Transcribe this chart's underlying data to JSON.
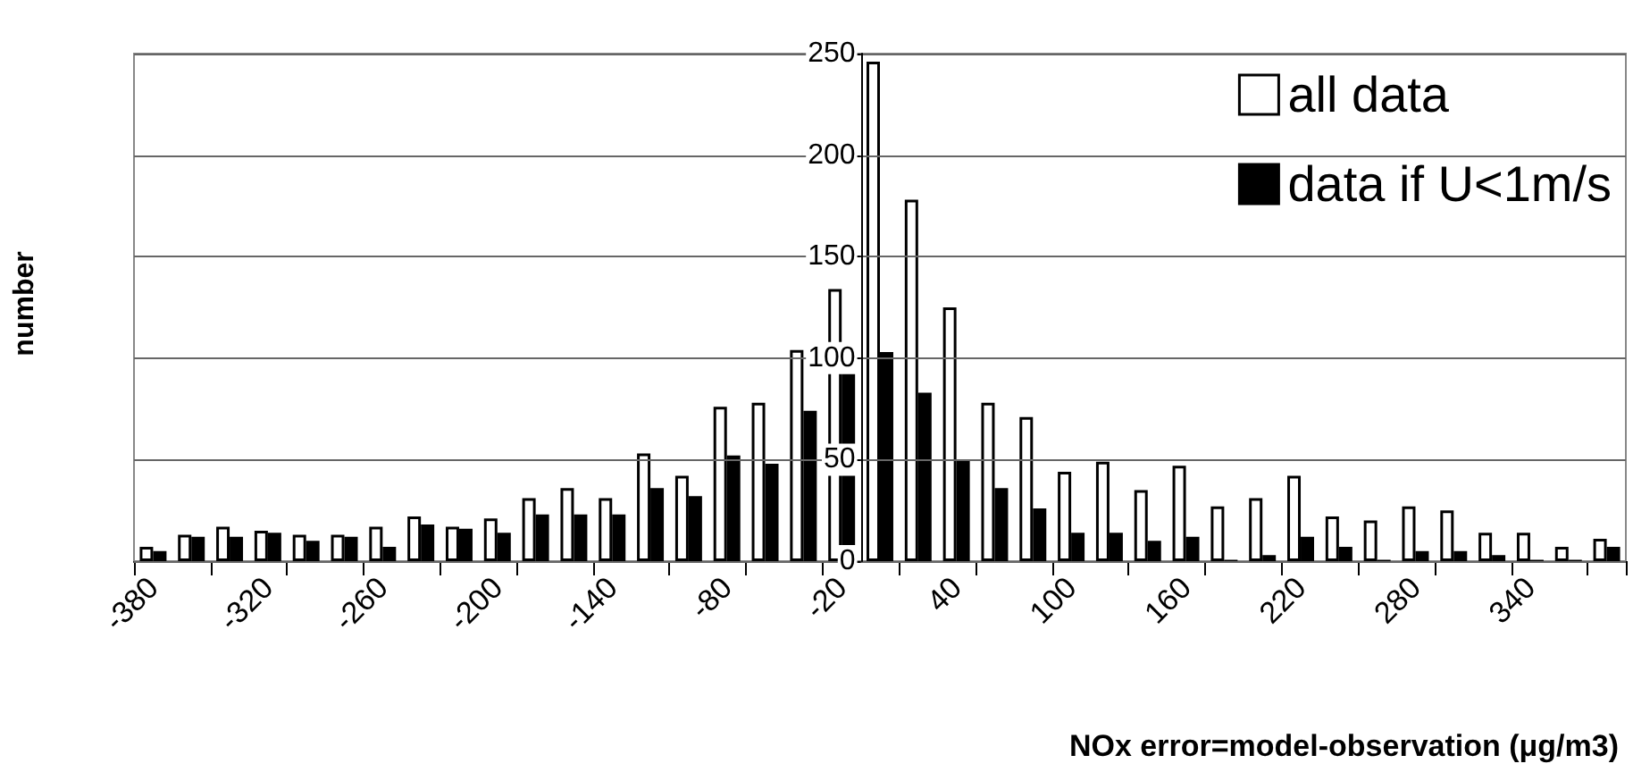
{
  "chart_data": {
    "type": "bar",
    "xlabel": "NOx error=model-observation (μg/m3)",
    "ylabel": "number",
    "categories": [
      "-380",
      null,
      null,
      "-320",
      null,
      null,
      "-260",
      null,
      null,
      "-200",
      null,
      null,
      "-140",
      null,
      null,
      "-80",
      null,
      null,
      "-20",
      null,
      null,
      "40",
      null,
      null,
      "100",
      null,
      null,
      "160",
      null,
      null,
      "220",
      null,
      null,
      "280",
      null,
      null,
      "340",
      null,
      null
    ],
    "series": [
      {
        "name": "all data",
        "color": "#ffffff",
        "values": [
          7,
          13,
          17,
          15,
          13,
          13,
          17,
          22,
          17,
          21,
          31,
          36,
          31,
          53,
          42,
          76,
          78,
          104,
          134,
          246,
          178,
          125,
          78,
          71,
          44,
          49,
          35,
          47,
          27,
          31,
          42,
          22,
          20,
          27,
          25,
          14,
          14,
          7,
          11
        ]
      },
      {
        "name": "data if U<1m/s",
        "color": "#000000",
        "values": [
          5,
          12,
          12,
          14,
          10,
          12,
          7,
          18,
          16,
          14,
          23,
          23,
          23,
          36,
          32,
          52,
          48,
          74,
          94,
          103,
          83,
          50,
          36,
          26,
          14,
          14,
          10,
          12,
          0,
          3,
          12,
          7,
          0,
          5,
          5,
          3,
          0,
          0,
          7
        ]
      }
    ],
    "ylim": [
      0,
      250
    ],
    "yticks": [
      0,
      50,
      100,
      150,
      200,
      250
    ],
    "grid": "y",
    "legend": "top right"
  }
}
